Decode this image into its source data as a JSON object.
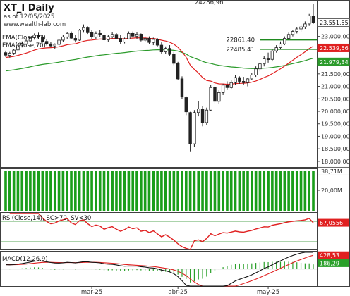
{
  "header": {
    "title": "XT_I Daily",
    "as_of": "as of 12/05/2025",
    "website": "www.wealth-lab.com"
  },
  "colors": {
    "panel_bg": "#ffffff",
    "border": "#404040",
    "axis_text": "#333333",
    "ema_fast": "#e02020",
    "ema_slow": "#2a9a2a",
    "levels": "#1f8a1f",
    "volume": "#1a9e1a",
    "rsi": "#e02020",
    "macd": "#111111",
    "macd_signal": "#e02020",
    "macd_hist": "#2aa02a",
    "close_marker_bg": "#ffffff"
  },
  "chart_data": {
    "type": "candlestick",
    "price_panel": {
      "ylim": [
        17800,
        24400
      ],
      "yticks": [
        "23.000,00",
        "22.500,00",
        "22.000,00",
        "21.500,00",
        "21.000,00",
        "20.500,00",
        "20.000,00",
        "19.500,00",
        "19.000,00",
        "18.500,00",
        "18.000,00"
      ],
      "ytick_values": [
        23000,
        22500,
        22000,
        21500,
        21000,
        20500,
        20000,
        19500,
        19000,
        18500,
        18000
      ],
      "last_close_label": "23.551,55",
      "last_close": 23551.55,
      "ema_fast_label": "22.539,56",
      "ema_fast_last": 22539.56,
      "ema_slow_label": "21.979,34",
      "ema_slow_last": 21979.34,
      "high_label": "24286,96",
      "high_value": 24286.96,
      "levels": [
        {
          "label": "22861,40",
          "value": 22861.4,
          "from_index": 62
        },
        {
          "label": "22485,41",
          "value": 22485.41,
          "from_index": 62
        }
      ],
      "legend": [
        "EMA(Close,21)",
        "EMA(Close,70)"
      ],
      "candles": [
        [
          22350,
          22430,
          22180,
          22250
        ],
        [
          22240,
          22380,
          22150,
          22330
        ],
        [
          22330,
          22500,
          22260,
          22450
        ],
        [
          22460,
          22700,
          22400,
          22650
        ],
        [
          22650,
          22800,
          22560,
          22720
        ],
        [
          22700,
          22880,
          22650,
          22820
        ],
        [
          22820,
          23000,
          22760,
          22960
        ],
        [
          22950,
          23120,
          22880,
          23050
        ],
        [
          23040,
          23150,
          22900,
          22980
        ],
        [
          22980,
          23050,
          22750,
          22800
        ],
        [
          22800,
          22880,
          22640,
          22700
        ],
        [
          22700,
          22780,
          22560,
          22620
        ],
        [
          22620,
          22720,
          22500,
          22680
        ],
        [
          22680,
          22900,
          22600,
          22850
        ],
        [
          22850,
          23050,
          22780,
          22980
        ],
        [
          22980,
          23180,
          22900,
          23120
        ],
        [
          23120,
          23200,
          22880,
          22930
        ],
        [
          22920,
          23050,
          22760,
          22850
        ],
        [
          22850,
          23300,
          22820,
          23250
        ],
        [
          23250,
          23480,
          23150,
          23350
        ],
        [
          23340,
          23400,
          23100,
          23150
        ],
        [
          23150,
          23250,
          22900,
          22980
        ],
        [
          22980,
          23200,
          22900,
          23120
        ],
        [
          23120,
          23260,
          22980,
          23060
        ],
        [
          23060,
          23150,
          22800,
          22860
        ],
        [
          22860,
          23050,
          22780,
          22990
        ],
        [
          22990,
          23160,
          22920,
          23080
        ],
        [
          23080,
          23130,
          22880,
          22920
        ],
        [
          22920,
          23050,
          22700,
          22780
        ],
        [
          22780,
          22950,
          22720,
          22900
        ],
        [
          22900,
          23200,
          22880,
          23120
        ],
        [
          23120,
          23200,
          22950,
          23010
        ],
        [
          23010,
          23160,
          22900,
          23090
        ],
        [
          23090,
          23120,
          22800,
          22850
        ],
        [
          22850,
          23000,
          22780,
          22920
        ],
        [
          22920,
          23000,
          22700,
          22760
        ],
        [
          22760,
          22950,
          22650,
          22880
        ],
        [
          22880,
          22930,
          22600,
          22650
        ],
        [
          22650,
          22760,
          22300,
          22380
        ],
        [
          22380,
          22600,
          22300,
          22520
        ],
        [
          22520,
          22650,
          22200,
          22280
        ],
        [
          22280,
          22380,
          21850,
          21920
        ],
        [
          21920,
          21980,
          21250,
          21300
        ],
        [
          21300,
          21400,
          20500,
          20580
        ],
        [
          20550,
          20600,
          19850,
          19980
        ],
        [
          19950,
          19980,
          18400,
          18700
        ],
        [
          18700,
          20050,
          18580,
          19950
        ],
        [
          19950,
          20400,
          19800,
          20100
        ],
        [
          20100,
          20200,
          19400,
          19550
        ],
        [
          19550,
          20150,
          19450,
          20050
        ],
        [
          20050,
          21050,
          20000,
          20950
        ],
        [
          20950,
          21200,
          20300,
          20400
        ],
        [
          20400,
          20850,
          20300,
          20750
        ],
        [
          20750,
          21100,
          20650,
          21050
        ],
        [
          21050,
          21200,
          20880,
          20950
        ],
        [
          20950,
          21250,
          20900,
          21150
        ],
        [
          21150,
          21450,
          21050,
          21350
        ],
        [
          21350,
          21400,
          21100,
          21200
        ],
        [
          21200,
          21380,
          21050,
          21150
        ],
        [
          21150,
          21350,
          21000,
          21300
        ],
        [
          21300,
          21550,
          21250,
          21450
        ],
        [
          21450,
          21800,
          21380,
          21700
        ],
        [
          21700,
          21950,
          21600,
          21900
        ],
        [
          21900,
          22200,
          21800,
          22100
        ],
        [
          22100,
          22350,
          21950,
          22080
        ],
        [
          22080,
          22500,
          22000,
          22420
        ],
        [
          22420,
          22650,
          22350,
          22550
        ],
        [
          22550,
          22800,
          22480,
          22700
        ],
        [
          22700,
          23000,
          22650,
          22920
        ],
        [
          22920,
          23150,
          22850,
          23080
        ],
        [
          23080,
          23250,
          23000,
          23200
        ],
        [
          23200,
          23380,
          23120,
          23300
        ],
        [
          23300,
          23480,
          23180,
          23380
        ],
        [
          23380,
          23600,
          23300,
          23500
        ],
        [
          23500,
          23900,
          23420,
          23820
        ],
        [
          23820,
          24290,
          23500,
          23552
        ]
      ]
    },
    "volume_panel": {
      "yticks": [
        "38,71M",
        "20,00M"
      ],
      "ytick_values": [
        38.71,
        20.0
      ],
      "ylim": [
        0,
        40
      ],
      "unit": "M",
      "values": [
        38.71,
        38.71,
        38.71,
        38.71,
        38.71,
        38.71,
        38.71,
        38.71,
        38.71,
        38.71,
        38.71,
        38.71,
        38.71,
        38.71,
        38.71,
        38.71,
        38.71,
        38.71,
        38.71,
        38.71,
        38.71,
        38.71,
        38.71,
        38.71,
        38.71,
        38.71,
        38.71,
        38.71,
        38.71,
        38.71,
        38.71,
        38.71,
        38.71,
        38.71,
        38.71,
        38.71,
        38.71,
        38.71,
        38.71,
        38.71,
        38.71,
        38.71,
        38.71,
        38.71,
        38.71,
        38.71,
        38.71,
        38.71,
        38.71,
        38.71,
        38.71,
        38.71,
        38.71,
        38.71,
        38.71,
        38.71,
        38.71,
        38.71,
        38.71,
        38.71,
        38.71,
        38.71,
        38.71,
        38.71,
        38.71,
        38.71,
        38.71,
        38.71,
        38.71,
        38.71,
        38.71,
        38.71,
        38.71,
        38.71,
        38.71,
        38.71
      ]
    },
    "rsi_panel": {
      "title": "RSI(Close,14), SC>70, SV<30",
      "ylim": [
        15,
        85
      ],
      "bands": [
        70,
        30
      ],
      "last_label": "67,0556",
      "last_value": 67.0556
    },
    "macd_panel": {
      "title": "MACD(12,26,9)",
      "ylim": [
        -520,
        520
      ],
      "macd_label": "428,53",
      "macd_last": 428.53,
      "signal_label": "186,29",
      "signal_last": 186.29
    },
    "xaxis": {
      "labels": [
        "mar-25",
        "abr-25",
        "may-25"
      ],
      "label_indices": [
        21,
        42,
        64
      ]
    }
  }
}
